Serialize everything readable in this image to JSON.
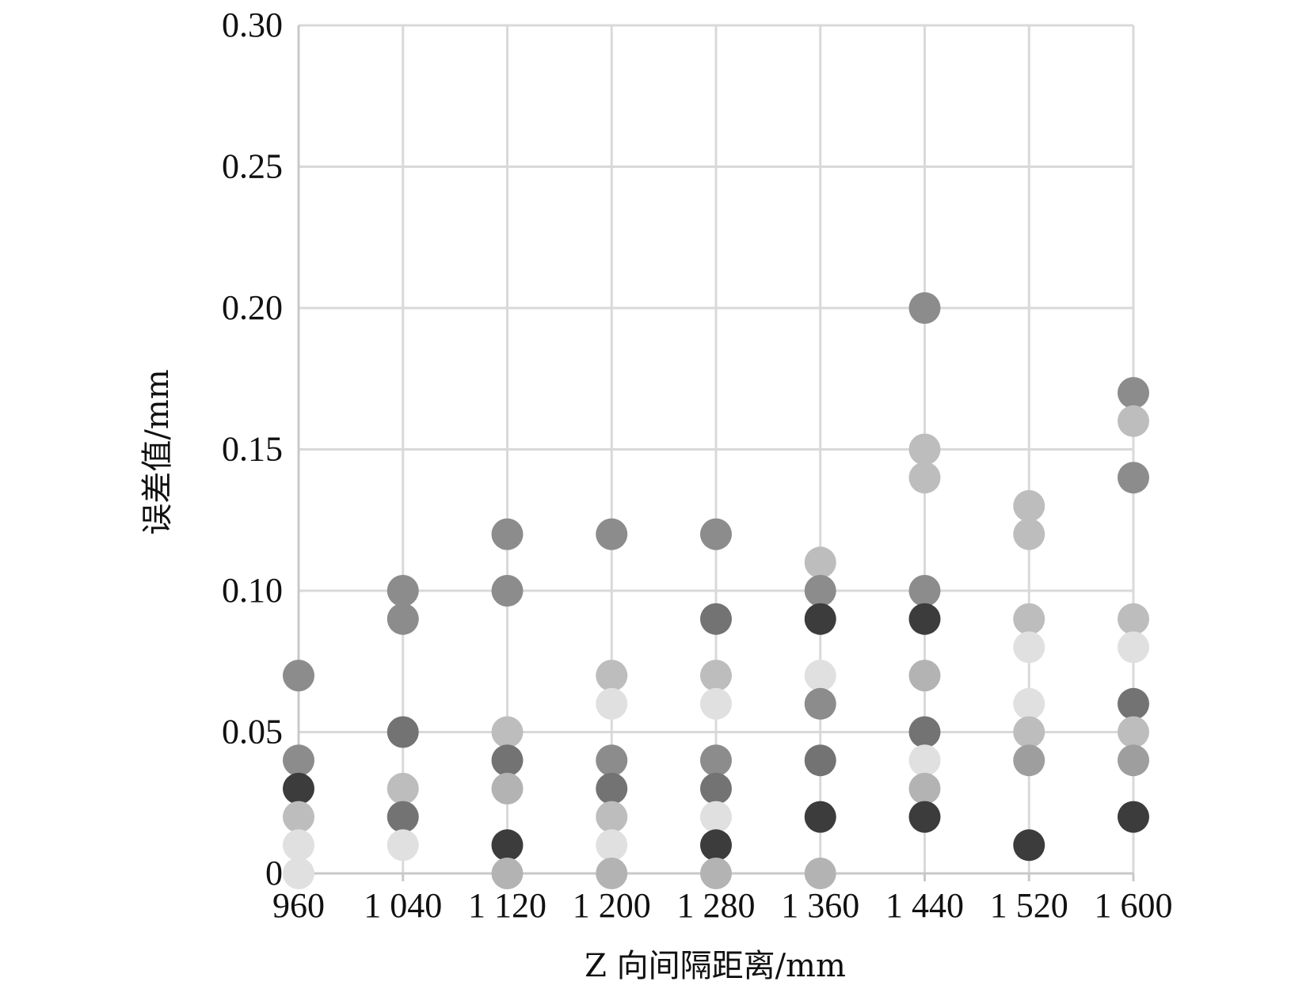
{
  "chart_data": {
    "type": "scatter",
    "xlabel": "Z 向间隔距离/mm",
    "ylabel": "误差值/mm",
    "x_categories": [
      "960",
      "1 040",
      "1 120",
      "1 200",
      "1 280",
      "1 360",
      "1 440",
      "1 520",
      "1 600"
    ],
    "y_ticks": [
      "0",
      "0.05",
      "0.10",
      "0.15",
      "0.20",
      "0.25",
      "0.30"
    ],
    "y_tick_values": [
      0,
      0.05,
      0.1,
      0.15,
      0.2,
      0.25,
      0.3
    ],
    "ylim": [
      0,
      0.3
    ],
    "grid": true,
    "legend": "none",
    "points": [
      {
        "x": "960",
        "y": 0.07,
        "color": "#8c8c8c"
      },
      {
        "x": "960",
        "y": 0.04,
        "color": "#8c8c8c"
      },
      {
        "x": "960",
        "y": 0.03,
        "color": "#3c3c3c"
      },
      {
        "x": "960",
        "y": 0.02,
        "color": "#bdbdbd"
      },
      {
        "x": "960",
        "y": 0.01,
        "color": "#e0e0e0"
      },
      {
        "x": "960",
        "y": 0.0,
        "color": "#e0e0e0"
      },
      {
        "x": "1 040",
        "y": 0.1,
        "color": "#8c8c8c"
      },
      {
        "x": "1 040",
        "y": 0.09,
        "color": "#8c8c8c"
      },
      {
        "x": "1 040",
        "y": 0.05,
        "color": "#737373"
      },
      {
        "x": "1 040",
        "y": 0.03,
        "color": "#bdbdbd"
      },
      {
        "x": "1 040",
        "y": 0.02,
        "color": "#737373"
      },
      {
        "x": "1 040",
        "y": 0.01,
        "color": "#e0e0e0"
      },
      {
        "x": "1 120",
        "y": 0.12,
        "color": "#8c8c8c"
      },
      {
        "x": "1 120",
        "y": 0.1,
        "color": "#8c8c8c"
      },
      {
        "x": "1 120",
        "y": 0.05,
        "color": "#bdbdbd"
      },
      {
        "x": "1 120",
        "y": 0.04,
        "color": "#737373"
      },
      {
        "x": "1 120",
        "y": 0.03,
        "color": "#b3b3b3"
      },
      {
        "x": "1 120",
        "y": 0.01,
        "color": "#3c3c3c"
      },
      {
        "x": "1 120",
        "y": 0.0,
        "color": "#b3b3b3"
      },
      {
        "x": "1 200",
        "y": 0.12,
        "color": "#8c8c8c"
      },
      {
        "x": "1 200",
        "y": 0.07,
        "color": "#bdbdbd"
      },
      {
        "x": "1 200",
        "y": 0.06,
        "color": "#e0e0e0"
      },
      {
        "x": "1 200",
        "y": 0.04,
        "color": "#8c8c8c"
      },
      {
        "x": "1 200",
        "y": 0.03,
        "color": "#737373"
      },
      {
        "x": "1 200",
        "y": 0.02,
        "color": "#bdbdbd"
      },
      {
        "x": "1 200",
        "y": 0.01,
        "color": "#e0e0e0"
      },
      {
        "x": "1 200",
        "y": 0.0,
        "color": "#b3b3b3"
      },
      {
        "x": "1 280",
        "y": 0.12,
        "color": "#8c8c8c"
      },
      {
        "x": "1 280",
        "y": 0.09,
        "color": "#737373"
      },
      {
        "x": "1 280",
        "y": 0.07,
        "color": "#bdbdbd"
      },
      {
        "x": "1 280",
        "y": 0.06,
        "color": "#e0e0e0"
      },
      {
        "x": "1 280",
        "y": 0.04,
        "color": "#8c8c8c"
      },
      {
        "x": "1 280",
        "y": 0.03,
        "color": "#737373"
      },
      {
        "x": "1 280",
        "y": 0.02,
        "color": "#e0e0e0"
      },
      {
        "x": "1 280",
        "y": 0.01,
        "color": "#3c3c3c"
      },
      {
        "x": "1 280",
        "y": 0.0,
        "color": "#b3b3b3"
      },
      {
        "x": "1 360",
        "y": 0.11,
        "color": "#bdbdbd"
      },
      {
        "x": "1 360",
        "y": 0.1,
        "color": "#8c8c8c"
      },
      {
        "x": "1 360",
        "y": 0.09,
        "color": "#3c3c3c"
      },
      {
        "x": "1 360",
        "y": 0.07,
        "color": "#e0e0e0"
      },
      {
        "x": "1 360",
        "y": 0.06,
        "color": "#8c8c8c"
      },
      {
        "x": "1 360",
        "y": 0.04,
        "color": "#737373"
      },
      {
        "x": "1 360",
        "y": 0.02,
        "color": "#3c3c3c"
      },
      {
        "x": "1 360",
        "y": 0.0,
        "color": "#b3b3b3"
      },
      {
        "x": "1 440",
        "y": 0.2,
        "color": "#8c8c8c"
      },
      {
        "x": "1 440",
        "y": 0.15,
        "color": "#bdbdbd"
      },
      {
        "x": "1 440",
        "y": 0.14,
        "color": "#bdbdbd"
      },
      {
        "x": "1 440",
        "y": 0.1,
        "color": "#8c8c8c"
      },
      {
        "x": "1 440",
        "y": 0.09,
        "color": "#3c3c3c"
      },
      {
        "x": "1 440",
        "y": 0.07,
        "color": "#b3b3b3"
      },
      {
        "x": "1 440",
        "y": 0.05,
        "color": "#737373"
      },
      {
        "x": "1 440",
        "y": 0.04,
        "color": "#e0e0e0"
      },
      {
        "x": "1 440",
        "y": 0.03,
        "color": "#b3b3b3"
      },
      {
        "x": "1 440",
        "y": 0.02,
        "color": "#3c3c3c"
      },
      {
        "x": "1 520",
        "y": 0.13,
        "color": "#bdbdbd"
      },
      {
        "x": "1 520",
        "y": 0.12,
        "color": "#bdbdbd"
      },
      {
        "x": "1 520",
        "y": 0.09,
        "color": "#bdbdbd"
      },
      {
        "x": "1 520",
        "y": 0.08,
        "color": "#e0e0e0"
      },
      {
        "x": "1 520",
        "y": 0.06,
        "color": "#e0e0e0"
      },
      {
        "x": "1 520",
        "y": 0.05,
        "color": "#bdbdbd"
      },
      {
        "x": "1 520",
        "y": 0.04,
        "color": "#9e9e9e"
      },
      {
        "x": "1 520",
        "y": 0.01,
        "color": "#3c3c3c"
      },
      {
        "x": "1 600",
        "y": 0.17,
        "color": "#8c8c8c"
      },
      {
        "x": "1 600",
        "y": 0.16,
        "color": "#bdbdbd"
      },
      {
        "x": "1 600",
        "y": 0.14,
        "color": "#8c8c8c"
      },
      {
        "x": "1 600",
        "y": 0.09,
        "color": "#bdbdbd"
      },
      {
        "x": "1 600",
        "y": 0.08,
        "color": "#e0e0e0"
      },
      {
        "x": "1 600",
        "y": 0.06,
        "color": "#737373"
      },
      {
        "x": "1 600",
        "y": 0.05,
        "color": "#bdbdbd"
      },
      {
        "x": "1 600",
        "y": 0.04,
        "color": "#9e9e9e"
      },
      {
        "x": "1 600",
        "y": 0.02,
        "color": "#3c3c3c"
      }
    ]
  }
}
